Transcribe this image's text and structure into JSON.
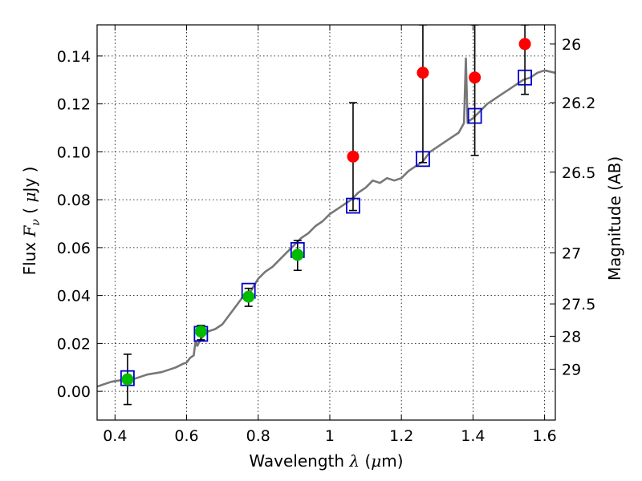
{
  "chart_data": {
    "type": "scatter",
    "xlabel_prefix": "Wavelength",
    "xlabel_symbol": "λ",
    "xlabel_unit_open": "(",
    "xlabel_unit_mu": "μ",
    "xlabel_unit_rest": "m)",
    "ylabel_prefix": "Flux",
    "ylabel_symbol": "F",
    "ylabel_subscript": "ν",
    "ylabel_unit_open": "(",
    "ylabel_unit_mu": "μ",
    "ylabel_unit_rest": "Jy )",
    "ylabel_right": "Magnitude (AB)",
    "xlim": [
      0.35,
      1.63
    ],
    "ylim": [
      -0.012,
      0.153
    ],
    "xticks": [
      0.4,
      0.6,
      0.8,
      1.0,
      1.2,
      1.4,
      1.6
    ],
    "xtick_labels": [
      "0.4",
      "0.6",
      "0.8",
      "1",
      "1.2",
      "1.4",
      "1.6"
    ],
    "yticks": [
      0.0,
      0.02,
      0.04,
      0.06,
      0.08,
      0.1,
      0.12,
      0.14
    ],
    "ytick_labels": [
      "0.00",
      "0.02",
      "0.04",
      "0.06",
      "0.08",
      "0.10",
      "0.12",
      "0.14"
    ],
    "right_ticks": [
      {
        "label": "26",
        "flux": 0.145
      },
      {
        "label": "26.2",
        "flux": 0.1205
      },
      {
        "label": "26.5",
        "flux": 0.0915
      },
      {
        "label": "27",
        "flux": 0.0578
      },
      {
        "label": "27.5",
        "flux": 0.0365
      },
      {
        "label": "28",
        "flux": 0.023
      },
      {
        "label": "29",
        "flux": 0.0092
      }
    ],
    "grid": true,
    "series": [
      {
        "name": "model spectrum",
        "kind": "line",
        "color": "#777777",
        "x": [
          0.35,
          0.37,
          0.39,
          0.41,
          0.43,
          0.45,
          0.47,
          0.49,
          0.51,
          0.53,
          0.55,
          0.57,
          0.59,
          0.6,
          0.61,
          0.62,
          0.625,
          0.63,
          0.64,
          0.66,
          0.68,
          0.7,
          0.72,
          0.74,
          0.76,
          0.78,
          0.8,
          0.82,
          0.84,
          0.86,
          0.88,
          0.9,
          0.92,
          0.94,
          0.96,
          0.98,
          1.0,
          1.02,
          1.04,
          1.06,
          1.08,
          1.1,
          1.12,
          1.14,
          1.16,
          1.18,
          1.2,
          1.22,
          1.24,
          1.26,
          1.28,
          1.3,
          1.32,
          1.34,
          1.36,
          1.375,
          1.38,
          1.385,
          1.39,
          1.4,
          1.42,
          1.44,
          1.46,
          1.48,
          1.5,
          1.52,
          1.54,
          1.56,
          1.58,
          1.6,
          1.63
        ],
        "y": [
          0.002,
          0.003,
          0.004,
          0.0045,
          0.005,
          0.005,
          0.006,
          0.007,
          0.0075,
          0.008,
          0.009,
          0.01,
          0.0115,
          0.012,
          0.014,
          0.015,
          0.021,
          0.019,
          0.022,
          0.025,
          0.026,
          0.028,
          0.032,
          0.036,
          0.04,
          0.042,
          0.047,
          0.05,
          0.052,
          0.055,
          0.058,
          0.061,
          0.064,
          0.066,
          0.069,
          0.071,
          0.074,
          0.076,
          0.078,
          0.08,
          0.083,
          0.085,
          0.088,
          0.087,
          0.089,
          0.088,
          0.089,
          0.092,
          0.094,
          0.096,
          0.1,
          0.102,
          0.104,
          0.106,
          0.108,
          0.112,
          0.139,
          0.112,
          0.113,
          0.114,
          0.117,
          0.12,
          0.122,
          0.124,
          0.126,
          0.128,
          0.13,
          0.131,
          0.133,
          0.134,
          0.133
        ]
      },
      {
        "name": "green points",
        "kind": "points",
        "color": "#00bb00",
        "points": [
          {
            "x": 0.435,
            "y": 0.005
          },
          {
            "x": 0.64,
            "y": 0.025
          },
          {
            "x": 0.773,
            "y": 0.0395
          },
          {
            "x": 0.91,
            "y": 0.057
          }
        ]
      },
      {
        "name": "red points",
        "kind": "points",
        "color": "#ff0000",
        "points": [
          {
            "x": 1.065,
            "y": 0.098
          },
          {
            "x": 1.26,
            "y": 0.133
          },
          {
            "x": 1.405,
            "y": 0.131
          },
          {
            "x": 1.545,
            "y": 0.145
          }
        ]
      },
      {
        "name": "model photometry",
        "kind": "squares",
        "color": "#0000cc",
        "points": [
          {
            "x": 0.435,
            "y": 0.0055
          },
          {
            "x": 0.64,
            "y": 0.024
          },
          {
            "x": 0.773,
            "y": 0.042
          },
          {
            "x": 0.91,
            "y": 0.059
          },
          {
            "x": 1.065,
            "y": 0.0775
          },
          {
            "x": 1.26,
            "y": 0.097
          },
          {
            "x": 1.405,
            "y": 0.115
          },
          {
            "x": 1.545,
            "y": 0.131
          }
        ]
      },
      {
        "name": "error bars",
        "kind": "errorbars",
        "color": "#000000",
        "bars": [
          {
            "x": 0.435,
            "low": -0.0055,
            "high": 0.0155
          },
          {
            "x": 0.64,
            "low": 0.0215,
            "high": 0.0275
          },
          {
            "x": 0.773,
            "low": 0.0355,
            "high": 0.043
          },
          {
            "x": 0.91,
            "low": 0.0505,
            "high": 0.063
          },
          {
            "x": 1.065,
            "low": 0.0755,
            "high": 0.1205
          },
          {
            "x": 1.26,
            "low": 0.0955,
            "high": 0.153
          },
          {
            "x": 1.405,
            "low": 0.0985,
            "high": 0.153
          },
          {
            "x": 1.545,
            "low": 0.124,
            "high": 0.153
          }
        ]
      }
    ]
  }
}
